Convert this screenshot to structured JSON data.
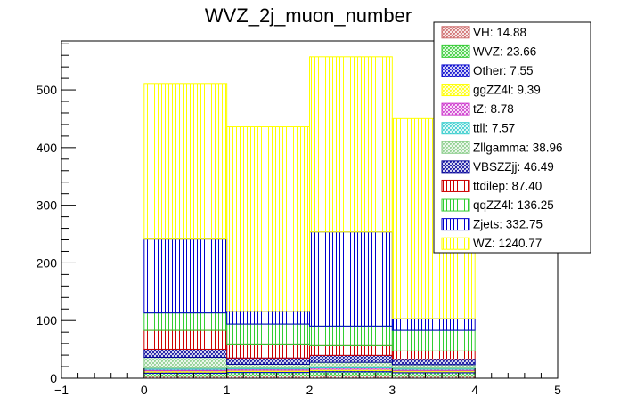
{
  "chart_data": {
    "type": "bar",
    "stacked": true,
    "title": "WVZ_2j_muon_number",
    "xlabel": "",
    "ylabel": "",
    "xlim": [
      -1,
      5
    ],
    "ylim": [
      0,
      585
    ],
    "bins": [
      [
        0,
        1
      ],
      [
        1,
        2
      ],
      [
        2,
        3
      ],
      [
        3,
        4
      ]
    ],
    "x_ticks": [
      "-1",
      "0",
      "1",
      "2",
      "3",
      "4",
      "5"
    ],
    "y_ticks": [
      "0",
      "100",
      "200",
      "300",
      "400",
      "500"
    ],
    "legend_position": "top-right",
    "series": [
      {
        "name": "VH",
        "label": "VH: 14.88",
        "color": "#cc6666",
        "pattern": "crosshatch",
        "values": [
          3.5,
          3.8,
          4.0,
          3.6
        ]
      },
      {
        "name": "WVZ",
        "label": "WVZ: 23.66",
        "color": "#33cc33",
        "pattern": "crosshatch",
        "values": [
          5.0,
          6.0,
          7.0,
          5.7
        ]
      },
      {
        "name": "Other",
        "label": "Other: 7.55",
        "color": "#0000cc",
        "pattern": "crosshatch",
        "values": [
          2.0,
          1.8,
          2.0,
          1.8
        ]
      },
      {
        "name": "ggZZ4l",
        "label": "ggZZ4l: 9.39",
        "color": "#ffff00",
        "pattern": "crosshatch",
        "values": [
          2.5,
          2.2,
          2.5,
          2.2
        ]
      },
      {
        "name": "tZ",
        "label": "tZ: 8.78",
        "color": "#cc33cc",
        "pattern": "crosshatch",
        "values": [
          2.2,
          2.2,
          2.2,
          2.2
        ]
      },
      {
        "name": "ttll",
        "label": "ttll: 7.57",
        "color": "#33cccc",
        "pattern": "crosshatch",
        "values": [
          2.0,
          2.0,
          1.8,
          1.8
        ]
      },
      {
        "name": "Zllgamma",
        "label": "Zllgamma: 38.96",
        "color": "#88cc88",
        "pattern": "crosshatch",
        "values": [
          19.0,
          6.0,
          8.0,
          6.0
        ]
      },
      {
        "name": "VBSZZjj",
        "label": "VBSZZjj: 46.49",
        "color": "#000099",
        "pattern": "crosshatch",
        "values": [
          14.0,
          11.0,
          12.0,
          9.5
        ]
      },
      {
        "name": "ttdilep",
        "label": "ttdilep: 87.40",
        "color": "#cc0000",
        "pattern": "vertical",
        "values": [
          33.0,
          23.0,
          17.0,
          14.4
        ]
      },
      {
        "name": "qqZZ4l",
        "label": "qqZZ4l: 136.25",
        "color": "#33cc33",
        "pattern": "vertical",
        "values": [
          30.0,
          36.0,
          34.0,
          36.0
        ]
      },
      {
        "name": "Zjets",
        "label": "Zjets: 332.75",
        "color": "#0000cc",
        "pattern": "vertical",
        "values": [
          128.0,
          22.0,
          163.0,
          20.0
        ]
      },
      {
        "name": "WZ",
        "label": "WZ: 1240.77",
        "color": "#ffff00",
        "pattern": "vertical",
        "values": [
          270.0,
          320.0,
          304.0,
          347.0
        ]
      }
    ]
  }
}
